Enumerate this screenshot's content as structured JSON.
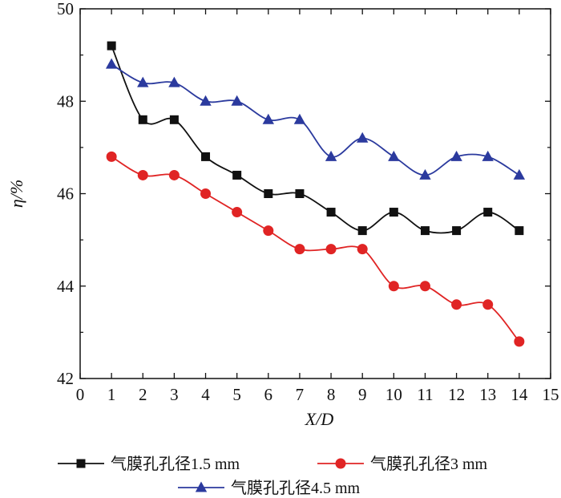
{
  "chart_data": {
    "type": "line",
    "xlabel": "X/D",
    "ylabel": "η/%",
    "xlim": [
      0,
      15
    ],
    "ylim": [
      42,
      50
    ],
    "xticks": [
      0,
      1,
      2,
      3,
      4,
      5,
      6,
      7,
      8,
      9,
      10,
      11,
      12,
      13,
      14,
      15
    ],
    "yticks": [
      42,
      44,
      46,
      48,
      50
    ],
    "grid": false,
    "legend_position": "bottom",
    "x": [
      1,
      2,
      3,
      4,
      5,
      6,
      7,
      8,
      9,
      10,
      11,
      12,
      13,
      14
    ],
    "series": [
      {
        "name": "气膜孔孔径1.5 mm",
        "color": "#111111",
        "marker": "square",
        "values": [
          49.2,
          47.6,
          47.6,
          46.8,
          46.4,
          46.0,
          46.0,
          45.6,
          45.2,
          45.6,
          45.2,
          45.2,
          45.6,
          45.2
        ]
      },
      {
        "name": "气膜孔孔径3 mm",
        "color": "#e02424",
        "marker": "circle",
        "values": [
          46.8,
          46.4,
          46.4,
          46.0,
          45.6,
          45.2,
          44.8,
          44.8,
          44.8,
          44.0,
          44.0,
          43.6,
          43.6,
          42.8
        ]
      },
      {
        "name": "气膜孔孔径4.5 mm",
        "color": "#2b3a9e",
        "marker": "triangle",
        "values": [
          48.8,
          48.4,
          48.4,
          48.0,
          48.0,
          47.6,
          47.6,
          46.8,
          47.2,
          46.8,
          46.4,
          46.8,
          46.8,
          46.4
        ]
      }
    ]
  }
}
